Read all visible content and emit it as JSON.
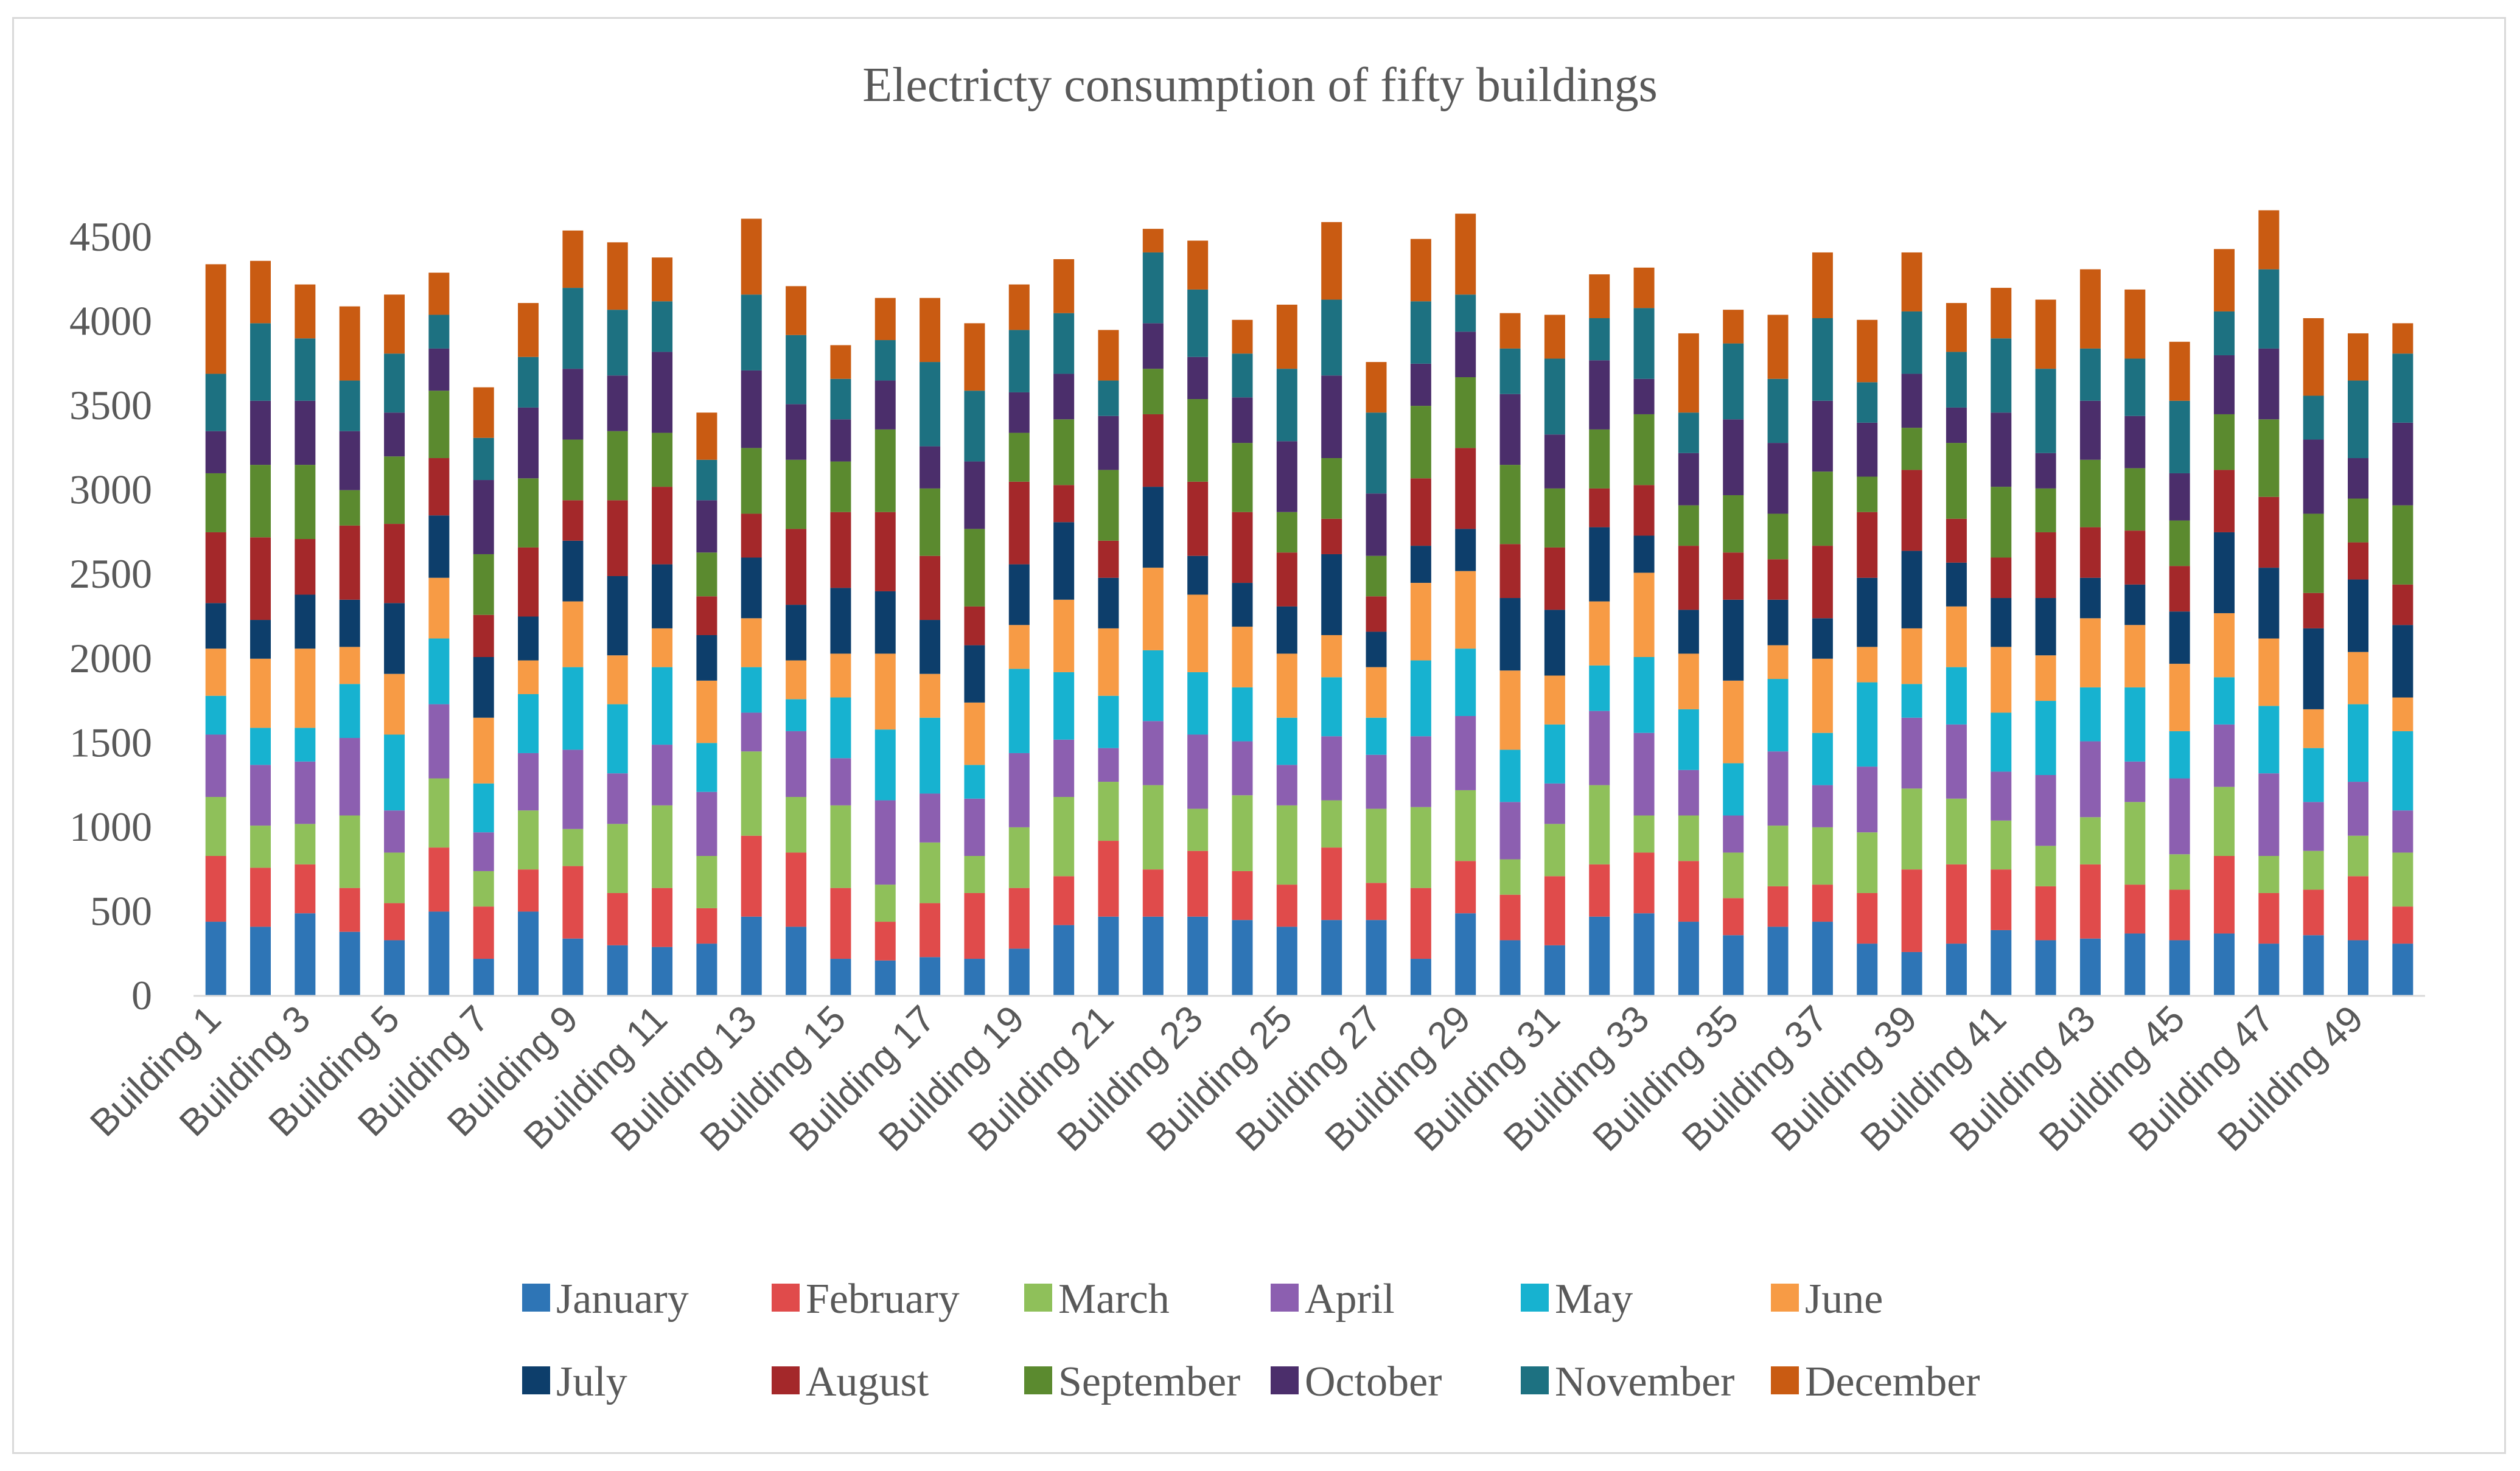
{
  "chart_data": {
    "type": "bar",
    "stacked": true,
    "title": "Electricty consumption of fifty buildings",
    "xlabel": "",
    "ylabel": "",
    "ylim": [
      0,
      4500
    ],
    "yticks": [
      0,
      500,
      1000,
      1500,
      2000,
      2500,
      3000,
      3500,
      4000,
      4500
    ],
    "legend_position": "bottom",
    "categories": [
      "Building 1",
      "Building 2",
      "Building 3",
      "Building 4",
      "Building 5",
      "Building 6",
      "Building 7",
      "Building 8",
      "Building 9",
      "Building 10",
      "Building 11",
      "Building 12",
      "Building 13",
      "Building 14",
      "Building 15",
      "Building 16",
      "Building 17",
      "Building 18",
      "Building 19",
      "Building 20",
      "Building 21",
      "Building 22",
      "Building 23",
      "Building 24",
      "Building 25",
      "Building 26",
      "Building 27",
      "Building 28",
      "Building 29",
      "Building 30",
      "Building 31",
      "Building 32",
      "Building 33",
      "Building 34",
      "Building 35",
      "Building 36",
      "Building 37",
      "Building 38",
      "Building 39",
      "Building 40",
      "Building 41",
      "Building 42",
      "Building 43",
      "Building 44",
      "Building 45",
      "Building 46",
      "Building 47",
      "Building 48",
      "Building 49",
      "Building 50"
    ],
    "tick_labels": [
      "Building 1",
      "Building 3",
      "Building 5",
      "Building 7",
      "Building 9",
      "Building 11",
      "Building 13",
      "Building 15",
      "Building 17",
      "Building 19",
      "Building 21",
      "Building 23",
      "Building 25",
      "Building 27",
      "Building 29",
      "Building 31",
      "Building 33",
      "Building 35",
      "Building 37",
      "Building 39",
      "Building 41",
      "Building 43",
      "Building 45",
      "Building 47",
      "Building 49"
    ],
    "series": [
      {
        "name": "January",
        "color": "#2e75b6",
        "values": [
          440,
          410,
          490,
          380,
          330,
          500,
          220,
          500,
          340,
          300,
          290,
          310,
          470,
          410,
          220,
          210,
          230,
          220,
          280,
          420,
          470,
          470,
          470,
          450,
          410,
          450,
          450,
          220,
          490,
          330,
          300,
          470,
          490,
          440,
          360,
          410,
          440,
          310,
          260,
          310,
          390,
          330,
          340,
          370,
          330,
          370,
          310,
          360,
          330,
          310
        ]
      },
      {
        "name": "February",
        "color": "#e04b4b",
        "values": [
          390,
          350,
          290,
          260,
          220,
          380,
          310,
          250,
          430,
          310,
          350,
          210,
          480,
          440,
          420,
          230,
          320,
          390,
          360,
          290,
          450,
          280,
          390,
          290,
          250,
          430,
          220,
          420,
          310,
          270,
          410,
          310,
          360,
          360,
          220,
          240,
          220,
          300,
          490,
          470,
          360,
          320,
          440,
          290,
          300,
          460,
          300,
          270,
          380,
          220
        ]
      },
      {
        "name": "March",
        "color": "#8fc05a",
        "values": [
          350,
          250,
          240,
          430,
          300,
          410,
          210,
          350,
          220,
          410,
          490,
          310,
          500,
          330,
          490,
          220,
          360,
          220,
          360,
          470,
          350,
          500,
          250,
          450,
          470,
          280,
          440,
          480,
          420,
          210,
          310,
          470,
          220,
          270,
          270,
          360,
          340,
          360,
          480,
          390,
          290,
          240,
          280,
          490,
          210,
          410,
          220,
          230,
          240,
          320
        ]
      },
      {
        "name": "April",
        "color": "#8c5fb0",
        "values": [
          370,
          360,
          370,
          460,
          250,
          440,
          230,
          340,
          470,
          300,
          360,
          380,
          230,
          390,
          280,
          500,
          290,
          340,
          440,
          340,
          200,
          380,
          440,
          320,
          240,
          380,
          320,
          420,
          440,
          340,
          240,
          440,
          490,
          270,
          220,
          440,
          250,
          390,
          420,
          440,
          290,
          420,
          450,
          240,
          450,
          370,
          490,
          290,
          320,
          250
        ]
      },
      {
        "name": "May",
        "color": "#17b2d0",
        "values": [
          230,
          220,
          200,
          320,
          450,
          390,
          290,
          350,
          490,
          410,
          460,
          290,
          270,
          190,
          360,
          420,
          450,
          200,
          500,
          400,
          310,
          420,
          370,
          320,
          280,
          350,
          220,
          450,
          400,
          310,
          350,
          270,
          450,
          360,
          310,
          430,
          310,
          500,
          200,
          340,
          350,
          440,
          320,
          440,
          280,
          280,
          400,
          320,
          460,
          470
        ]
      },
      {
        "name": "June",
        "color": "#f79b45",
        "values": [
          280,
          410,
          470,
          220,
          360,
          360,
          390,
          200,
          390,
          290,
          230,
          370,
          290,
          230,
          260,
          450,
          260,
          370,
          260,
          430,
          400,
          490,
          460,
          360,
          380,
          250,
          300,
          460,
          460,
          470,
          290,
          380,
          500,
          330,
          490,
          200,
          440,
          210,
          330,
          360,
          390,
          270,
          410,
          370,
          400,
          380,
          400,
          230,
          310,
          200
        ]
      },
      {
        "name": "July",
        "color": "#0d3e6b",
        "values": [
          270,
          230,
          320,
          280,
          420,
          370,
          360,
          260,
          360,
          470,
          380,
          270,
          360,
          330,
          390,
          370,
          320,
          340,
          360,
          460,
          300,
          480,
          230,
          260,
          280,
          480,
          210,
          220,
          250,
          430,
          390,
          440,
          220,
          260,
          480,
          270,
          240,
          410,
          460,
          260,
          290,
          340,
          240,
          240,
          310,
          480,
          420,
          480,
          430,
          430
        ]
      },
      {
        "name": "August",
        "color": "#a4282a",
        "values": [
          420,
          490,
          330,
          440,
          470,
          340,
          250,
          410,
          240,
          450,
          460,
          230,
          260,
          450,
          450,
          470,
          380,
          230,
          490,
          220,
          220,
          430,
          440,
          420,
          320,
          210,
          210,
          400,
          480,
          320,
          370,
          230,
          300,
          380,
          280,
          240,
          430,
          390,
          480,
          260,
          240,
          390,
          300,
          320,
          270,
          370,
          420,
          210,
          220,
          240
        ]
      },
      {
        "name": "September",
        "color": "#5b8a2f",
        "values": [
          350,
          430,
          440,
          210,
          400,
          400,
          360,
          410,
          360,
          410,
          320,
          260,
          390,
          410,
          300,
          490,
          400,
          460,
          290,
          390,
          420,
          270,
          490,
          410,
          240,
          360,
          240,
          430,
          420,
          470,
          350,
          350,
          420,
          240,
          340,
          270,
          440,
          210,
          250,
          450,
          420,
          260,
          400,
          370,
          270,
          330,
          460,
          470,
          260,
          470
        ]
      },
      {
        "name": "October",
        "color": "#4b2e6b",
        "values": [
          250,
          380,
          380,
          350,
          260,
          250,
          440,
          420,
          420,
          330,
          480,
          310,
          460,
          330,
          250,
          290,
          250,
          400,
          240,
          270,
          320,
          270,
          250,
          270,
          420,
          490,
          370,
          250,
          270,
          420,
          320,
          410,
          210,
          310,
          450,
          420,
          420,
          320,
          320,
          210,
          440,
          210,
          350,
          310,
          280,
          350,
          420,
          440,
          240,
          490
        ]
      },
      {
        "name": "November",
        "color": "#1d7181",
        "values": [
          340,
          460,
          370,
          300,
          350,
          200,
          250,
          300,
          480,
          390,
          300,
          240,
          450,
          410,
          240,
          240,
          500,
          420,
          370,
          360,
          210,
          420,
          400,
          260,
          430,
          450,
          480,
          370,
          220,
          270,
          450,
          250,
          420,
          240,
          450,
          380,
          490,
          240,
          370,
          330,
          440,
          500,
          310,
          340,
          430,
          260,
          470,
          260,
          460,
          410
        ]
      },
      {
        "name": "December",
        "color": "#c95b12",
        "values": [
          650,
          370,
          320,
          440,
          350,
          250,
          300,
          320,
          340,
          400,
          260,
          280,
          450,
          290,
          200,
          250,
          380,
          400,
          270,
          320,
          300,
          140,
          290,
          200,
          380,
          460,
          300,
          370,
          480,
          210,
          260,
          260,
          240,
          470,
          200,
          380,
          390,
          370,
          350,
          290,
          300,
          410,
          470,
          410,
          350,
          370,
          350,
          460,
          280,
          180
        ]
      }
    ]
  }
}
